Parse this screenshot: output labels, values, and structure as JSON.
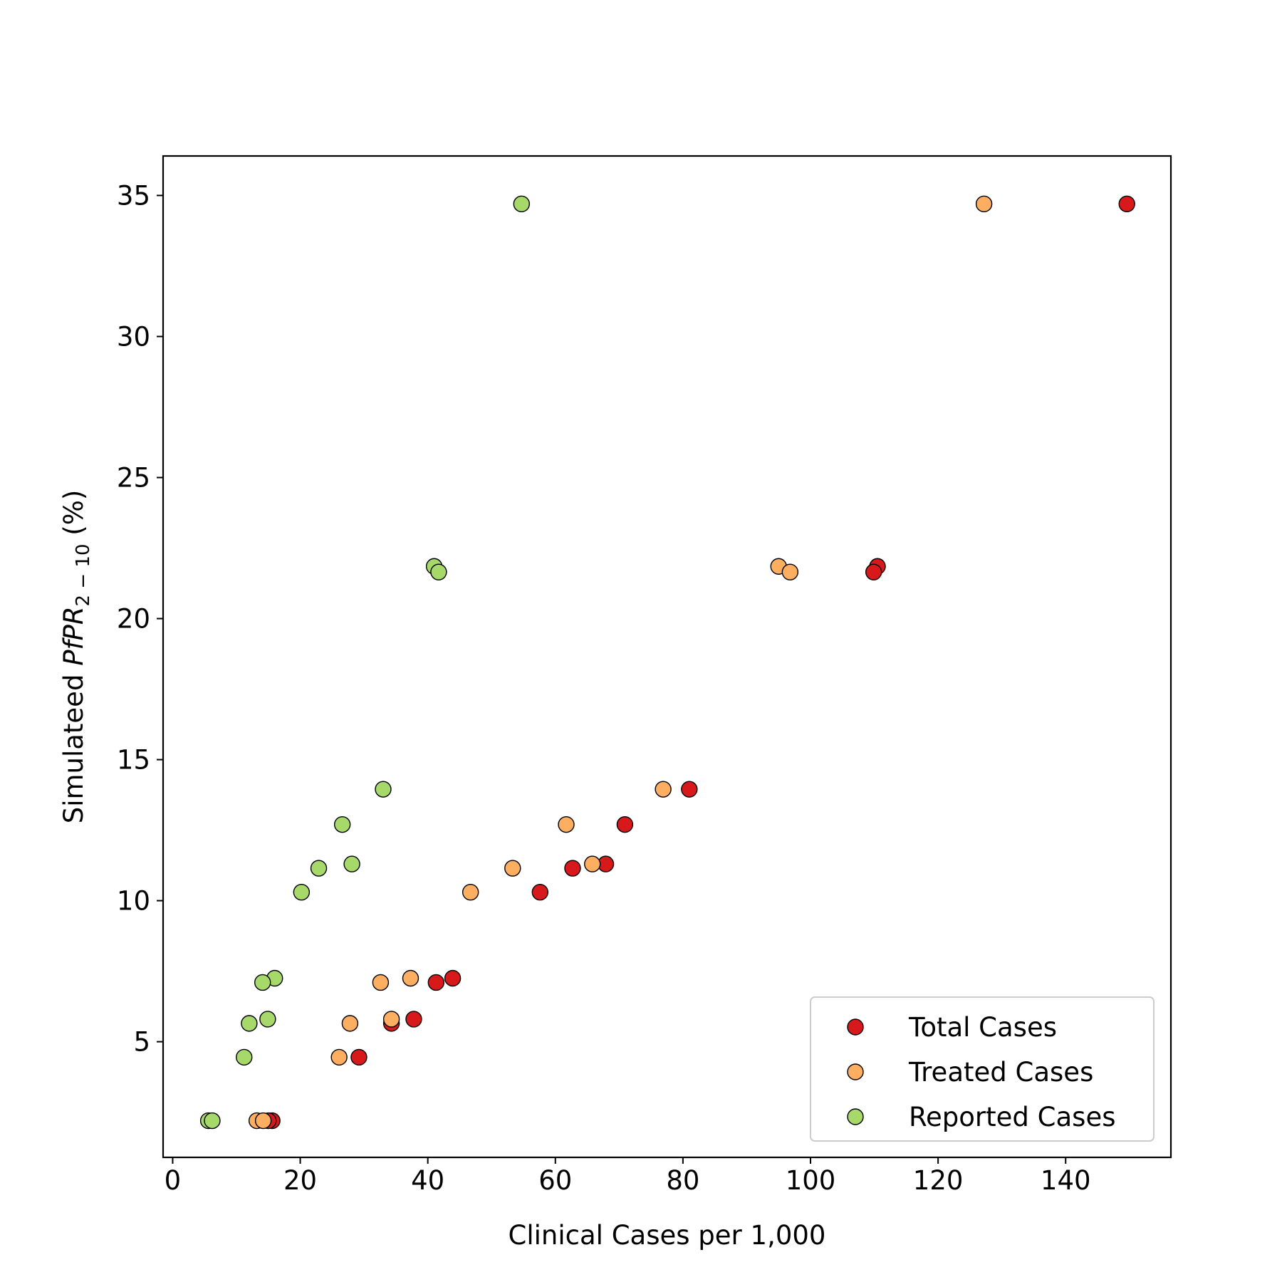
{
  "chart_data": {
    "type": "scatter",
    "title": "",
    "xlabel": "Clinical Cases per 1,000",
    "ylabel": {
      "prefix": "Simulateed ",
      "italic": "PfPR",
      "subscript": "2 − 10",
      "suffix": " (%)"
    },
    "xlim": [
      -1.5,
      156.5
    ],
    "ylim": [
      0.9,
      36.4
    ],
    "xticks": [
      0,
      20,
      40,
      60,
      80,
      100,
      120,
      140
    ],
    "yticks": [
      5,
      10,
      15,
      20,
      25,
      30,
      35
    ],
    "legend_position": "lower-right",
    "series": [
      {
        "name": "Total Cases",
        "color": "#d7191c",
        "points": [
          [
            149.6,
            34.7
          ],
          [
            110.5,
            21.85
          ],
          [
            109.9,
            21.65
          ],
          [
            81.0,
            13.95
          ],
          [
            70.9,
            12.7
          ],
          [
            67.9,
            11.3
          ],
          [
            62.7,
            11.15
          ],
          [
            57.6,
            10.3
          ],
          [
            43.9,
            7.25
          ],
          [
            41.3,
            7.1
          ],
          [
            37.8,
            5.8
          ],
          [
            34.3,
            5.65
          ],
          [
            29.2,
            4.45
          ],
          [
            15.6,
            2.2
          ],
          [
            15.0,
            2.2
          ]
        ]
      },
      {
        "name": "Treated Cases",
        "color": "#fdae61",
        "points": [
          [
            127.2,
            34.7
          ],
          [
            95.0,
            21.85
          ],
          [
            96.8,
            21.65
          ],
          [
            76.9,
            13.95
          ],
          [
            61.7,
            12.7
          ],
          [
            65.8,
            11.3
          ],
          [
            53.3,
            11.15
          ],
          [
            46.7,
            10.3
          ],
          [
            37.3,
            7.25
          ],
          [
            32.6,
            7.1
          ],
          [
            34.3,
            5.8
          ],
          [
            27.8,
            5.65
          ],
          [
            26.1,
            4.45
          ],
          [
            13.2,
            2.2
          ],
          [
            14.2,
            2.2
          ]
        ]
      },
      {
        "name": "Reported Cases",
        "color": "#a6d96a",
        "points": [
          [
            54.7,
            34.7
          ],
          [
            41.0,
            21.85
          ],
          [
            41.7,
            21.65
          ],
          [
            33.0,
            13.95
          ],
          [
            26.6,
            12.7
          ],
          [
            28.1,
            11.3
          ],
          [
            22.9,
            11.15
          ],
          [
            20.2,
            10.3
          ],
          [
            16.0,
            7.25
          ],
          [
            14.1,
            7.1
          ],
          [
            14.9,
            5.8
          ],
          [
            12.0,
            5.65
          ],
          [
            11.2,
            4.45
          ],
          [
            5.6,
            2.2
          ],
          [
            6.2,
            2.2
          ]
        ]
      }
    ]
  }
}
